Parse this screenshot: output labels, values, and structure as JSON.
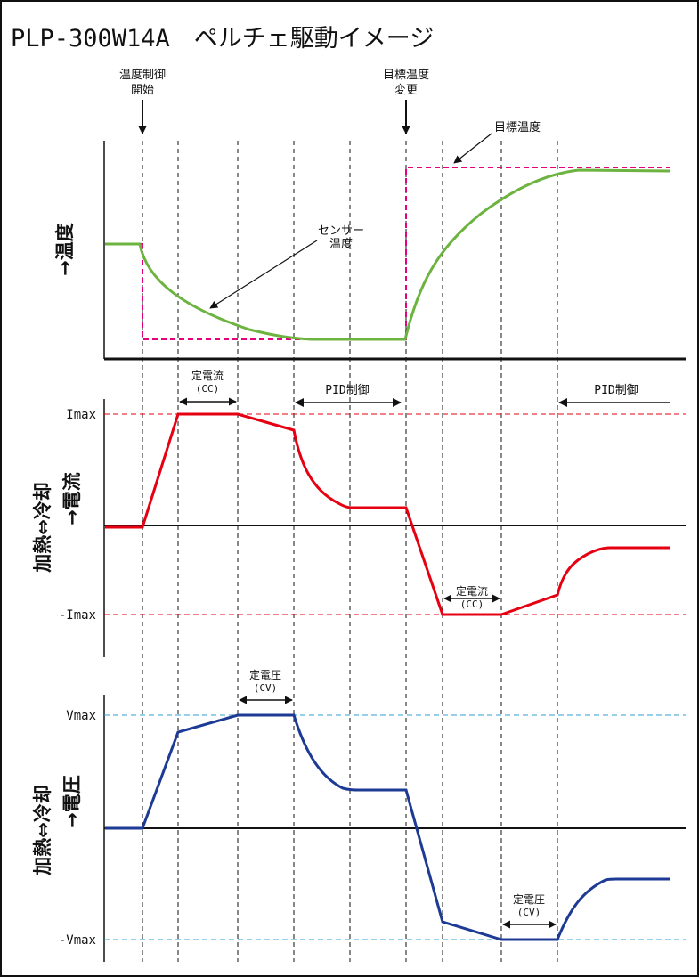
{
  "title": "PLP-300W14A　ペルチェ駆動イメージ",
  "events": {
    "start_l1": "温度制御",
    "start_l2": "開始",
    "change_l1": "目標温度",
    "change_l2": "変更"
  },
  "temperature": {
    "ylabel": "→温度",
    "target_label": "目標温度",
    "sensor_l1": "センサー",
    "sensor_l2": "温度"
  },
  "current": {
    "ylabel_l1": "加熱⇔冷却",
    "ylabel_l2": "→電流",
    "imax": "Imax",
    "neg_imax": "-Imax",
    "cc1_l1": "定電流",
    "cc1_l2": "(CC)",
    "cc2_l1": "定電流",
    "cc2_l2": "(CC)",
    "pid1": "PID制御",
    "pid2": "PID制御"
  },
  "voltage": {
    "ylabel_l1": "加熱⇔冷却",
    "ylabel_l2": "→電圧",
    "vmax": "Vmax",
    "neg_vmax": "-Vmax",
    "cv1_l1": "定電圧",
    "cv1_l2": "(CV)",
    "cv2_l1": "定電圧",
    "cv2_l2": "(CV)"
  },
  "colors": {
    "sensor": "#6cb33f",
    "target": "#e6007e",
    "current": "#e50012",
    "voltage": "#1d3a94",
    "vmax_dash": "#2e9fd6",
    "imax_dash": "#e50012"
  }
}
